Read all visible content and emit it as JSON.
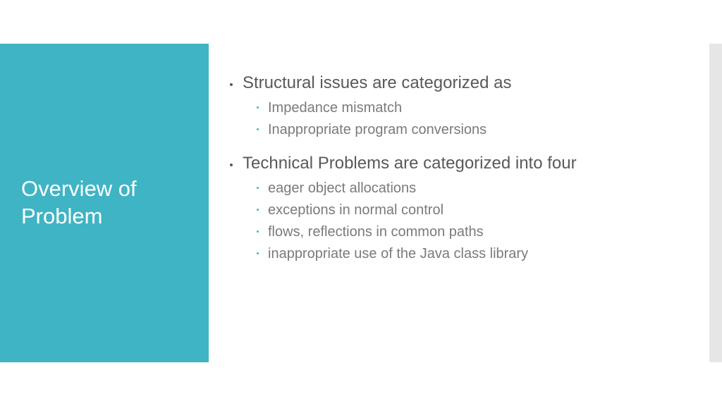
{
  "colors": {
    "panel_bg": "#3fb4c5",
    "title_text": "#ffffff",
    "body_text": "#595959",
    "sub_text": "#7a7a7a",
    "bullet_top": "#595959",
    "bullet_sub": "#3fb4c5",
    "right_bar": "#e6e6e6",
    "background": "#ffffff"
  },
  "title": "Overview of Problem",
  "items": [
    {
      "text": "Structural issues are categorized as",
      "children": [
        "Impedance mismatch",
        "Inappropriate program conversions"
      ]
    },
    {
      "text": "Technical Problems are categorized into four",
      "children": [
        "eager object allocations",
        " exceptions in normal control",
        "flows, reflections in common paths",
        " inappropriate use of the Java class library"
      ]
    }
  ],
  "typography": {
    "title_fontsize": 31,
    "top_fontsize": 24,
    "sub_fontsize": 20
  }
}
